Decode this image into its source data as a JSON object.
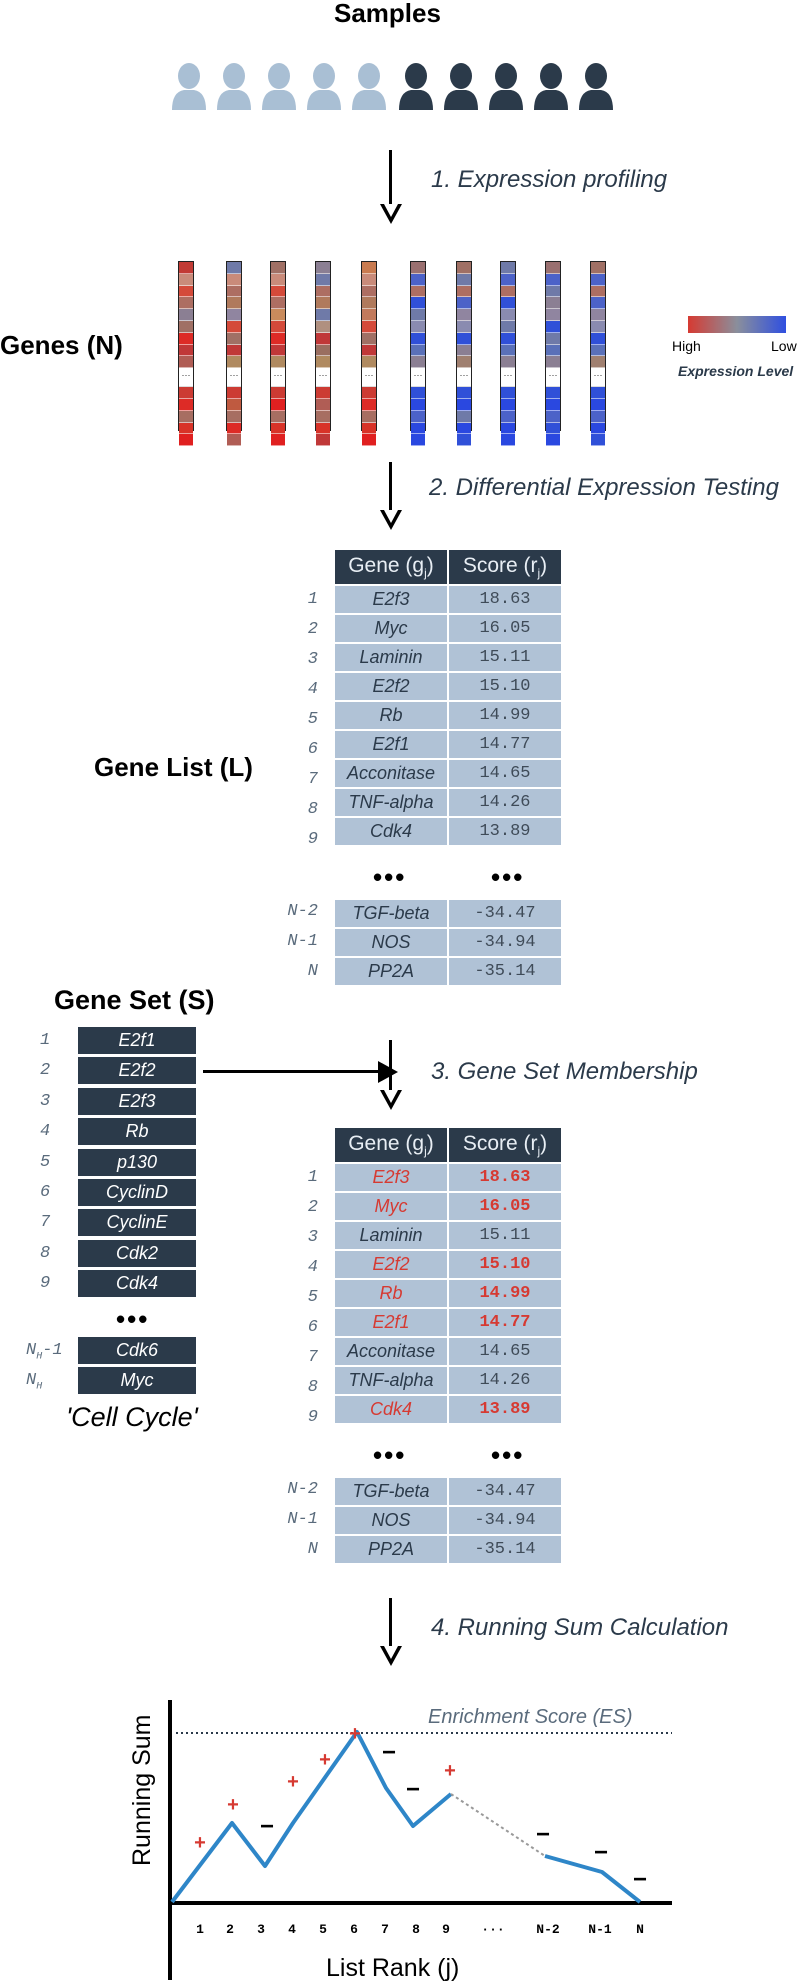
{
  "samples_title": "Samples",
  "people": [
    {
      "color": "#a9bfd4"
    },
    {
      "color": "#a9bfd4"
    },
    {
      "color": "#a9bfd4"
    },
    {
      "color": "#a9bfd4"
    },
    {
      "color": "#a9bfd4"
    },
    {
      "color": "#2b3a4a"
    },
    {
      "color": "#2b3a4a"
    },
    {
      "color": "#2b3a4a"
    },
    {
      "color": "#2b3a4a"
    },
    {
      "color": "#2b3a4a"
    }
  ],
  "steps": {
    "step1": "1. Expression profiling",
    "step2": "2. Differential Expression Testing",
    "step3": "3. Gene Set Membership",
    "step4": "4. Running Sum Calculation"
  },
  "genes_label": "Genes (N)",
  "legend": {
    "high": "High",
    "low": "Low",
    "title": "Expression Level",
    "colors": {
      "high": "#d63a32",
      "mid": "#8a8f9c",
      "low": "#2f4fe0"
    }
  },
  "gene_list_label": "Gene List (L)",
  "table_headers": {
    "gene": "Gene (g",
    "gene_sub": "j",
    "gene_close": ")",
    "score": "Score (r",
    "score_sub": "j",
    "score_close": ")"
  },
  "gene_list": [
    {
      "rank": "1",
      "gene": "E2f3",
      "score": "18.63",
      "hit": true
    },
    {
      "rank": "2",
      "gene": "Myc",
      "score": "16.05",
      "hit": true
    },
    {
      "rank": "3",
      "gene": "Laminin",
      "score": "15.11",
      "hit": false
    },
    {
      "rank": "4",
      "gene": "E2f2",
      "score": "15.10",
      "hit": true
    },
    {
      "rank": "5",
      "gene": "Rb",
      "score": "14.99",
      "hit": true
    },
    {
      "rank": "6",
      "gene": "E2f1",
      "score": "14.77",
      "hit": true
    },
    {
      "rank": "7",
      "gene": "Acconitase",
      "score": "14.65",
      "hit": false
    },
    {
      "rank": "8",
      "gene": "TNF-alpha",
      "score": "14.26",
      "hit": false
    },
    {
      "rank": "9",
      "gene": "Cdk4",
      "score": "13.89",
      "hit": true
    }
  ],
  "gene_list_tail": [
    {
      "rank": "N-2",
      "gene": "TGF-beta",
      "score": "-34.47"
    },
    {
      "rank": "N-1",
      "gene": "NOS",
      "score": "-34.94"
    },
    {
      "rank": "N",
      "gene": "PP2A",
      "score": "-35.14"
    }
  ],
  "ellipsis": "•••",
  "gene_set_label": "Gene Set (S)",
  "gene_set": [
    {
      "rank": "1",
      "gene": "E2f1"
    },
    {
      "rank": "2",
      "gene": "E2f2"
    },
    {
      "rank": "3",
      "gene": "E2f3"
    },
    {
      "rank": "4",
      "gene": "Rb"
    },
    {
      "rank": "5",
      "gene": "p130"
    },
    {
      "rank": "6",
      "gene": "CyclinD"
    },
    {
      "rank": "7",
      "gene": "CyclinE"
    },
    {
      "rank": "8",
      "gene": "Cdk2"
    },
    {
      "rank": "9",
      "gene": "Cdk4"
    }
  ],
  "gene_set_tail": [
    {
      "rank": "N",
      "rank_sub": "H",
      "rank_suffix": "-1",
      "gene": "Cdk6"
    },
    {
      "rank": "N",
      "rank_sub": "H",
      "rank_suffix": "",
      "gene": "Myc"
    }
  ],
  "gene_set_name": "'Cell Cycle'",
  "running_sum": {
    "es_label": "Enrichment Score (ES)",
    "ylabel": "Running Sum",
    "xlabel": "List Rank (j)",
    "x_ticks": [
      "1",
      "2",
      "3",
      "4",
      "5",
      "6",
      "7",
      "8",
      "9",
      "···",
      "N-2",
      "N-1",
      "N"
    ],
    "signs": [
      "+",
      "+",
      "−",
      "+",
      "+",
      "+",
      "−",
      "−",
      "+",
      "−",
      "−",
      "−"
    ],
    "line_color": "#2e86c8",
    "dash_color": "#999999",
    "plus_color": "#d63a32"
  }
}
